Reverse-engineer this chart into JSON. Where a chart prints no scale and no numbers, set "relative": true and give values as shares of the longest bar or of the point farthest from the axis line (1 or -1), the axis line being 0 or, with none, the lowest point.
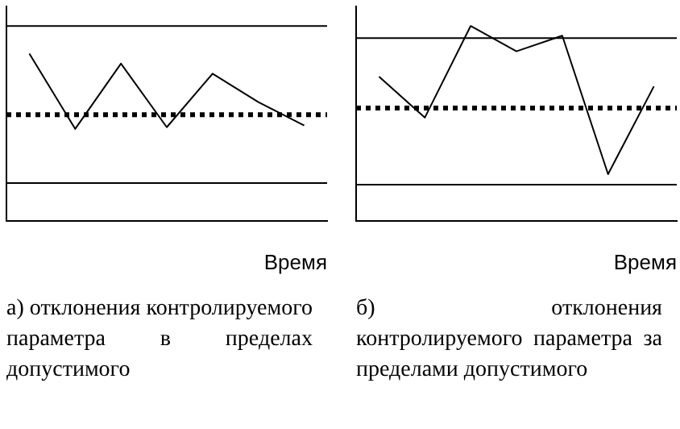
{
  "chart_data": [
    {
      "type": "line",
      "relative": true,
      "categories": [
        null,
        null,
        null,
        null,
        null,
        null,
        null
      ],
      "series": [
        {
          "color": "#000000",
          "values": [
            1,
            0.55,
            0.94,
            0.56,
            0.88,
            0.71,
            0.57
          ]
        }
      ],
      "xlabel": "Время",
      "marker": "none",
      "ref_lines": [
        {
          "axis": "y",
          "value": 1.165,
          "color": "#000000",
          "line_style": "solid"
        },
        {
          "axis": "y",
          "value": 0.635,
          "color": "#000000",
          "line_style": "dotted"
        },
        {
          "axis": "y",
          "value": 0.226,
          "color": "#000000",
          "line_style": "solid"
        }
      ],
      "annotations": [
        "а) отклонения контролируемого параметра в пределах допустимого"
      ]
    },
    {
      "type": "line",
      "relative": true,
      "categories": [
        null,
        null,
        null,
        null,
        null,
        null,
        null
      ],
      "series": [
        {
          "color": "#000000",
          "values": [
            0.74,
            0.53,
            1,
            0.87,
            0.95,
            0.24,
            0.69
          ]
        }
      ],
      "xlabel": "Время",
      "marker": "none",
      "ref_lines": [
        {
          "axis": "y",
          "value": 0.938,
          "color": "#000000",
          "line_style": "solid"
        },
        {
          "axis": "y",
          "value": 0.579,
          "color": "#000000",
          "line_style": "dotted"
        },
        {
          "axis": "y",
          "value": 0.186,
          "color": "#000000",
          "line_style": "solid"
        }
      ],
      "annotations": [
        "б) отклонения контролируемого параметра за пределами допустимого"
      ]
    }
  ]
}
